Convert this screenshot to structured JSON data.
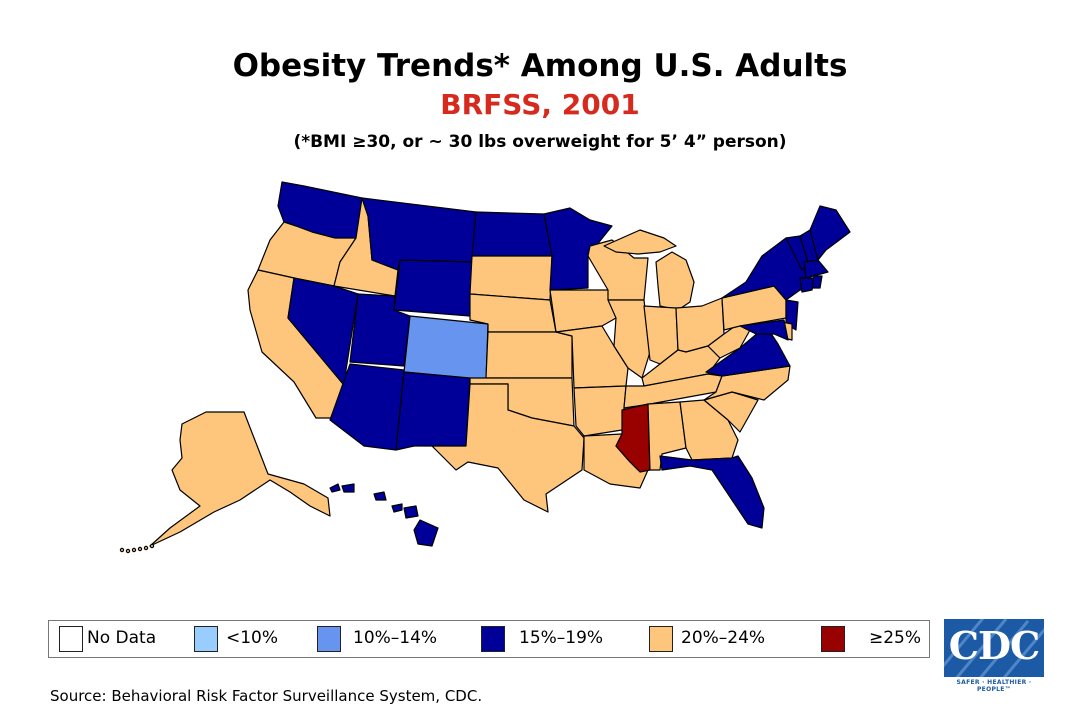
{
  "title": "Obesity Trends* Among U.S. Adults",
  "subtitle": "BRFSS, 2001",
  "note": "(*BMI ≥30, or ~ 30 lbs overweight for 5’ 4” person)",
  "legend": [
    {
      "key": "nodata",
      "label": "No Data",
      "color": "#ffffff"
    },
    {
      "key": "lt10",
      "label": "<10%",
      "color": "#99ccff"
    },
    {
      "key": "10-14",
      "label": "10%–14%",
      "color": "#6694ee"
    },
    {
      "key": "15-19",
      "label": "15%–19%",
      "color": "#000099"
    },
    {
      "key": "20-24",
      "label": "20%–24%",
      "color": "#fdc67c"
    },
    {
      "key": "gte25",
      "label": "≥25%",
      "color": "#990000"
    }
  ],
  "states": {
    "WA": "15-19",
    "OR": "20-24",
    "CA": "20-24",
    "ID": "20-24",
    "NV": "15-19",
    "MT": "15-19",
    "WY": "15-19",
    "UT": "15-19",
    "AZ": "15-19",
    "CO": "10-14",
    "NM": "15-19",
    "ND": "15-19",
    "SD": "20-24",
    "NE": "20-24",
    "KS": "20-24",
    "OK": "20-24",
    "TX": "20-24",
    "MN": "15-19",
    "IA": "20-24",
    "MO": "20-24",
    "AR": "20-24",
    "LA": "20-24",
    "WI": "20-24",
    "IL": "20-24",
    "MI": "20-24",
    "IN": "20-24",
    "OH": "20-24",
    "KY": "20-24",
    "TN": "20-24",
    "MS": "gte25",
    "AL": "20-24",
    "GA": "20-24",
    "FL": "15-19",
    "SC": "20-24",
    "NC": "20-24",
    "VA": "15-19",
    "WV": "20-24",
    "PA": "20-24",
    "NY": "15-19",
    "VT": "15-19",
    "NH": "15-19",
    "ME": "15-19",
    "MA": "15-19",
    "CT": "15-19",
    "RI": "15-19",
    "NJ": "15-19",
    "DE": "20-24",
    "MD": "15-19",
    "AK": "20-24",
    "HI": "15-19"
  },
  "source": "Source: Behavioral Risk Factor Surveillance System, CDC.",
  "logo": {
    "text": "CDC",
    "tagline": "SAFER · HEALTHIER · PEOPLE™"
  }
}
